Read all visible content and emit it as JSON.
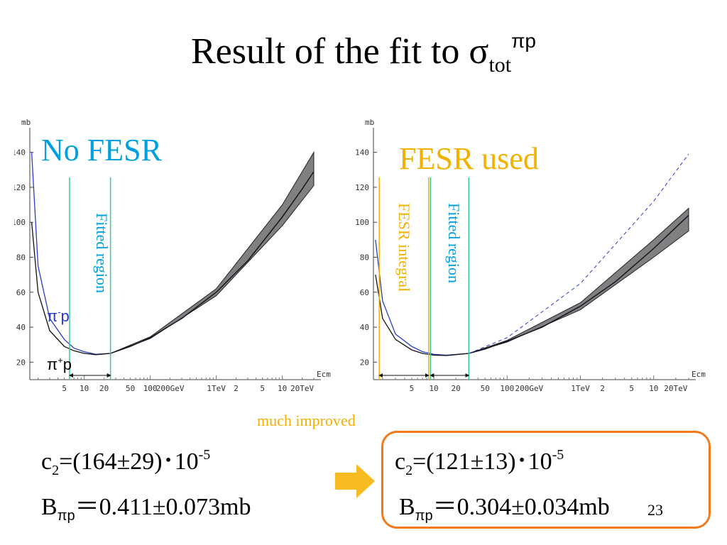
{
  "slide": {
    "title_main": "Result of the fit to σ",
    "title_sub": "tot",
    "title_sup": "πp",
    "page_number": "23"
  },
  "left_chart": {
    "title": "No FESR",
    "fitted_label": "Fitted region",
    "pi_minus": "π",
    "pi_minus_sup": "-",
    "pi_plus": "π",
    "pi_plus_sup": "+",
    "p": "p"
  },
  "right_chart": {
    "title": "FESR used",
    "fesr_label": "FESR integral",
    "fitted_label": "Fitted region"
  },
  "annotation": "much improved",
  "results": {
    "left_c2_prefix": "c",
    "left_c2_sub": "2",
    "left_c2_value": "=(164±29)･10",
    "left_c2_exp": "-5",
    "left_b_prefix": "B",
    "left_b_sub": "πp",
    "left_b_value": "＝0.411±0.073mb",
    "right_c2_prefix": "c",
    "right_c2_sub": "2",
    "right_c2_value": "=(121±13)･10",
    "right_c2_exp": "-5",
    "right_b_prefix": "B",
    "right_b_sub": "πp",
    "right_b_value": "＝0.304±0.034mb"
  },
  "colors": {
    "blue_text": "#00a0e0",
    "orange_text": "#f2b000",
    "curve_blue": "#2a3cc8",
    "band_fill": "#808080",
    "fitted_line": "#33cc99",
    "fesr_line": "#f2b000",
    "box_border": "#f07a1c",
    "arrow": "#f8bb22"
  },
  "chart_data": [
    {
      "type": "line",
      "xscale": "log",
      "xlabel": "Ecm",
      "ylabel": "mb",
      "ylim": [
        10,
        150
      ],
      "xlim": [
        1.5,
        30000
      ],
      "yticks": [
        20,
        40,
        60,
        80,
        100,
        120,
        140
      ],
      "xticks": [
        {
          "v": 5,
          "t": "5"
        },
        {
          "v": 10,
          "t": "10"
        },
        {
          "v": 20,
          "t": "20"
        },
        {
          "v": 50,
          "t": "50"
        },
        {
          "v": 100,
          "t": "100"
        },
        {
          "v": 200,
          "t": "200GeV"
        },
        {
          "v": 1000,
          "t": "1TeV"
        },
        {
          "v": 2000,
          "t": "2"
        },
        {
          "v": 5000,
          "t": "5"
        },
        {
          "v": 10000,
          "t": "10"
        },
        {
          "v": 20000,
          "t": "20TeV"
        }
      ],
      "fitted_region": [
        6,
        25
      ],
      "series": [
        {
          "x": [
            1.6,
            2,
            3,
            5,
            7,
            10,
            15,
            25,
            50,
            100,
            300,
            1000,
            3000,
            10000,
            20000,
            30000
          ],
          "y": [
            140,
            75,
            45,
            33,
            28,
            26,
            24.5,
            25,
            29,
            34,
            45,
            60,
            78,
            103,
            119,
            129
          ]
        },
        {
          "x": [
            1.6,
            2,
            3,
            5,
            7,
            10,
            15,
            25,
            50,
            100,
            300,
            1000,
            3000,
            10000,
            20000,
            30000
          ],
          "y": [
            100,
            60,
            38,
            29,
            26.5,
            25,
            24.3,
            25,
            29,
            34,
            45,
            60,
            78,
            103,
            119,
            129
          ]
        }
      ],
      "band_upper": {
        "x": [
          25,
          100,
          1000,
          10000,
          30000
        ],
        "y": [
          25,
          34.5,
          62,
          110,
          140
        ]
      },
      "band_lower": {
        "x": [
          25,
          100,
          1000,
          10000,
          30000
        ],
        "y": [
          25,
          33.5,
          58,
          98,
          121
        ]
      }
    },
    {
      "type": "line",
      "xscale": "log",
      "xlabel": "Ecm",
      "ylabel": "mb",
      "ylim": [
        10,
        150
      ],
      "xlim": [
        1.5,
        30000
      ],
      "yticks": [
        20,
        40,
        60,
        80,
        100,
        120,
        140
      ],
      "xticks": [
        {
          "v": 5,
          "t": "5"
        },
        {
          "v": 10,
          "t": "10"
        },
        {
          "v": 20,
          "t": "20"
        },
        {
          "v": 50,
          "t": "50"
        },
        {
          "v": 100,
          "t": "100"
        },
        {
          "v": 200,
          "t": "200GeV"
        },
        {
          "v": 1000,
          "t": "1TeV"
        },
        {
          "v": 2000,
          "t": "2"
        },
        {
          "v": 5000,
          "t": "5"
        },
        {
          "v": 10000,
          "t": "10"
        },
        {
          "v": 20000,
          "t": "20TeV"
        }
      ],
      "fitted_region": [
        9,
        30
      ],
      "fesr_region": [
        1.8,
        8.5
      ],
      "series": [
        {
          "x": [
            1.6,
            2,
            3,
            5,
            7,
            10,
            15,
            30,
            50,
            100,
            300,
            1000,
            3000,
            10000,
            20000,
            30000
          ],
          "y": [
            90,
            55,
            36,
            29,
            26,
            24.5,
            24,
            25,
            27.5,
            32,
            40,
            52,
            66,
            85,
            97,
            104
          ]
        },
        {
          "x": [
            1.6,
            2,
            3,
            5,
            7,
            10,
            15,
            30,
            50,
            100,
            300,
            1000,
            3000,
            10000,
            20000,
            30000
          ],
          "y": [
            70,
            45,
            33,
            27,
            25,
            24,
            23.8,
            25,
            27.5,
            32,
            40,
            52,
            66,
            85,
            97,
            104
          ]
        }
      ],
      "band_upper": {
        "x": [
          30,
          100,
          1000,
          10000,
          30000
        ],
        "y": [
          25,
          32.5,
          54,
          90,
          108
        ]
      },
      "band_lower": {
        "x": [
          30,
          100,
          1000,
          10000,
          30000
        ],
        "y": [
          25,
          31.5,
          50,
          80,
          95
        ]
      },
      "dashed": {
        "x": [
          30,
          100,
          1000,
          10000,
          30000
        ],
        "y": [
          25,
          34,
          65,
          112,
          139
        ]
      }
    }
  ]
}
